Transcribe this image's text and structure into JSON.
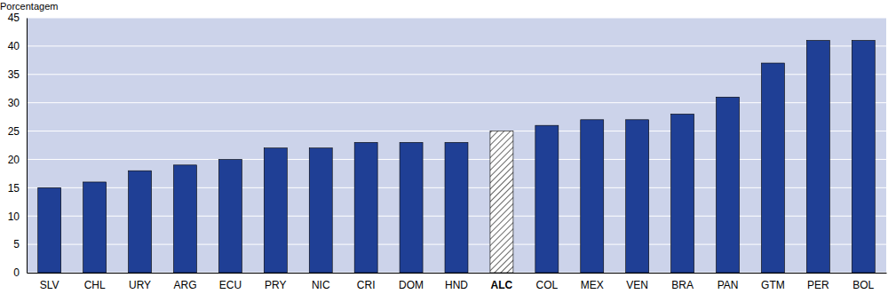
{
  "chart_data": {
    "type": "bar",
    "y_label": "Porcentagem",
    "categories": [
      "SLV",
      "CHL",
      "URY",
      "ARG",
      "ECU",
      "PRY",
      "NIC",
      "CRI",
      "DOM",
      "HND",
      "ALC",
      "COL",
      "MEX",
      "VEN",
      "BRA",
      "PAN",
      "GTM",
      "PER",
      "BOL"
    ],
    "values": [
      15,
      16,
      18,
      19,
      20,
      22,
      22,
      23,
      23,
      23,
      25,
      26,
      27,
      27,
      28,
      31,
      37,
      41,
      41
    ],
    "colors": [
      "#1f3f95",
      "#1f3f95",
      "#1f3f95",
      "#1f3f95",
      "#1f3f95",
      "#1f3f95",
      "#1f3f95",
      "#1f3f95",
      "#1f3f95",
      "#1f3f95",
      "#ffffff",
      "#1f3f95",
      "#1f3f95",
      "#1f3f95",
      "#1f3f95",
      "#1f3f95",
      "#1f3f95",
      "#1f3f95",
      "#1f3f95"
    ],
    "ylim": [
      0,
      45
    ],
    "yticks": [
      0,
      5,
      10,
      15,
      20,
      25,
      30,
      35,
      40,
      45
    ],
    "grid": true
  }
}
